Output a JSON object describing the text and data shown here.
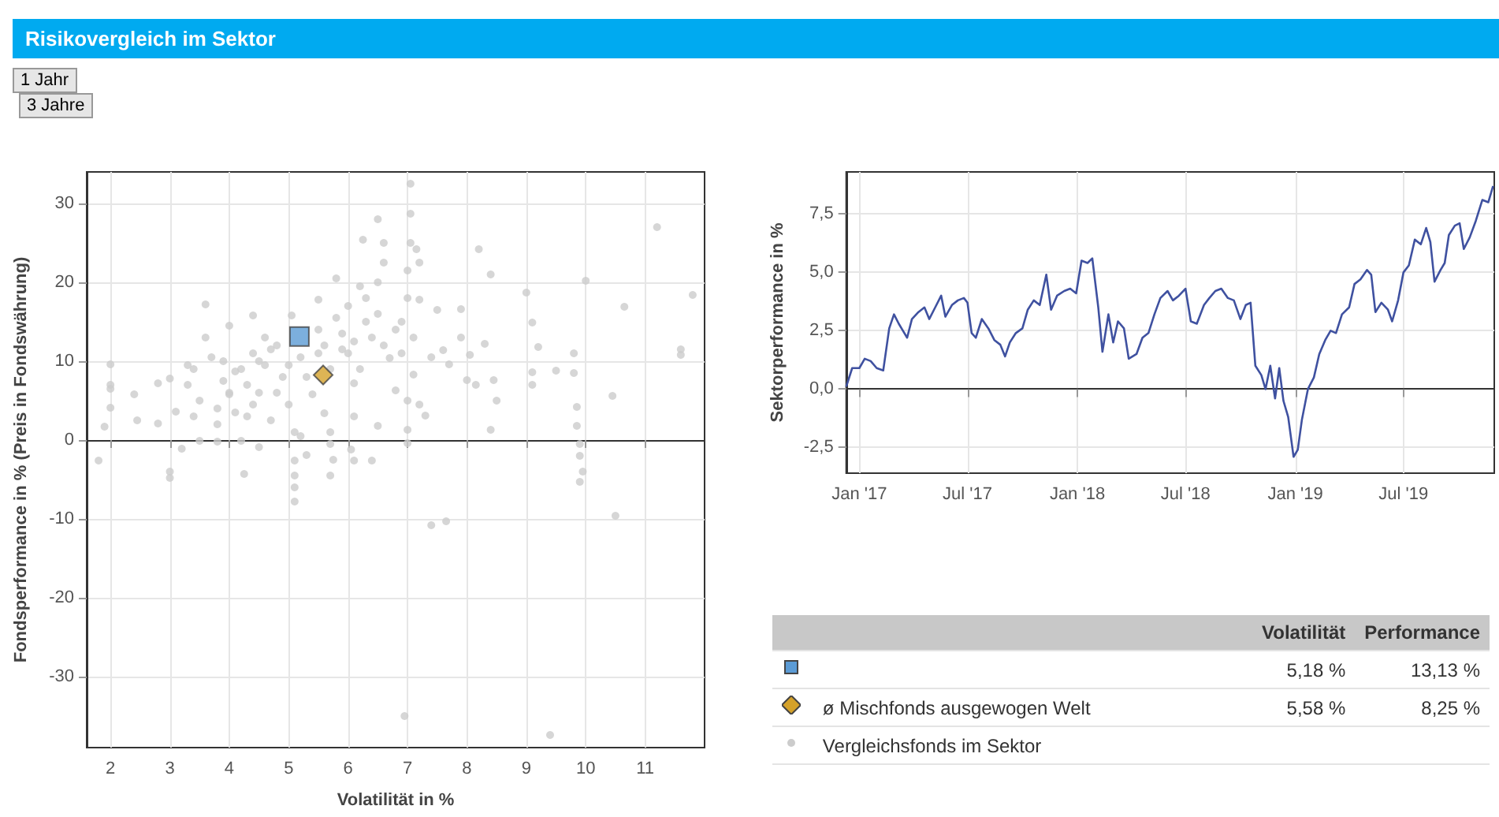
{
  "chart_data": [
    {
      "type": "scatter",
      "title": "Risikovergleich im Sektor",
      "xlabel": "Volatilität in %",
      "ylabel": "Fondsperformance in % (Preis in Fondswährung)",
      "xlim": [
        1.6,
        12
      ],
      "xticks": [
        2,
        3,
        4,
        5,
        6,
        7,
        8,
        9,
        10,
        11
      ],
      "ylim": [
        -39,
        34
      ],
      "yticks": [
        -30,
        -20,
        -10,
        0,
        10,
        20,
        30
      ],
      "grid": true,
      "legend": "right",
      "annotations": [
        "1 Jahr",
        "3 Jahre",
        "Volatilität",
        "Performance",
        "5,18 %",
        "13,13 %",
        "5,58 %",
        "8,25 %"
      ],
      "series": [
        {
          "color": "#5b9bd5",
          "marker": "square",
          "x": [
            5.18
          ],
          "values": [
            13.13
          ]
        },
        {
          "name": "ø Mischfonds ausgewogen Welt",
          "color": "#d4a12a",
          "marker": "diamond",
          "x": [
            5.58
          ],
          "values": [
            8.25
          ]
        },
        {
          "name": "Vergleichsfonds im Sektor",
          "color": "#cccccc",
          "marker": "circle",
          "x": [
            1.8,
            1.9,
            2.0,
            2.0,
            2.0,
            2.0,
            2.4,
            2.45,
            2.8,
            2.8,
            3.0,
            3.0,
            3.0,
            3.1,
            3.2,
            3.3,
            3.4,
            3.4,
            3.5,
            3.6,
            3.6,
            3.7,
            3.8,
            3.8,
            3.9,
            4.0,
            4.0,
            4.1,
            4.2,
            4.25,
            4.3,
            4.4,
            4.4,
            4.5,
            4.5,
            4.6,
            4.7,
            4.8,
            4.9,
            5.0,
            5.05,
            5.1,
            5.1,
            5.1,
            5.1,
            5.1,
            5.2,
            5.3,
            5.4,
            5.5,
            5.6,
            5.6,
            5.7,
            5.7,
            5.7,
            5.75,
            5.8,
            5.9,
            6.0,
            6.0,
            6.05,
            6.1,
            6.1,
            6.1,
            6.2,
            6.25,
            6.3,
            6.4,
            6.5,
            6.5,
            6.5,
            6.6,
            6.6,
            6.7,
            6.8,
            6.9,
            6.95,
            7.0,
            7.0,
            7.0,
            7.0,
            7.0,
            7.05,
            7.05,
            7.05,
            7.1,
            7.15,
            7.2,
            7.2,
            7.2,
            7.3,
            7.4,
            7.4,
            7.5,
            7.6,
            7.65,
            7.7,
            7.9,
            7.9,
            8.0,
            8.05,
            8.15,
            8.2,
            8.3,
            8.4,
            8.4,
            8.45,
            8.5,
            9.0,
            9.1,
            9.1,
            9.1,
            9.2,
            9.4,
            9.5,
            9.8,
            9.8,
            9.85,
            9.85,
            9.9,
            9.9,
            9.9,
            9.95,
            10.0,
            10.45,
            10.5,
            10.65,
            11.2,
            11.6,
            11.6,
            11.8,
            4.0,
            4.2,
            4.3,
            4.5,
            4.7,
            4.8,
            5.0,
            5.2,
            5.3,
            5.5,
            5.7,
            5.9,
            6.1,
            6.2,
            6.4,
            6.5,
            6.6,
            6.8,
            6.9,
            7.1,
            6.3,
            5.8,
            5.5,
            4.6,
            3.5,
            3.3,
            3.8,
            4.1,
            4.4,
            3.9
          ],
          "values": [
            -2.6,
            1.7,
            9.6,
            7,
            6.5,
            4.1,
            5.8,
            2.5,
            7.2,
            2.1,
            7.8,
            -4,
            -4.8,
            3.6,
            -1.1,
            9.5,
            9,
            3.0,
            -0.1,
            17.2,
            13,
            10.5,
            -0.2,
            2,
            7.5,
            14.5,
            5.8,
            8.7,
            -0.1,
            -4.3,
            3,
            15.8,
            11,
            6,
            -0.9,
            9.5,
            2.5,
            12,
            8,
            4.5,
            15.8,
            -2.6,
            -4.5,
            -6,
            -7.8,
            1,
            0.5,
            -1.9,
            5.8,
            17.8,
            12,
            3.4,
            -0.5,
            -4.5,
            1,
            -2.5,
            20.5,
            13.5,
            11,
            17,
            -1.2,
            7.2,
            -2.6,
            3,
            19.5,
            25.4,
            15,
            -2.6,
            28,
            20,
            1.8,
            22.5,
            25,
            10.4,
            6.3,
            15,
            -35,
            21.5,
            18,
            5,
            1.3,
            -0.4,
            32.5,
            28.7,
            25,
            8.3,
            24.2,
            22.5,
            17.8,
            4.5,
            3.1,
            10.5,
            -10.8,
            16.5,
            11.4,
            -10.3,
            9.6,
            16.6,
            13,
            7.6,
            10.8,
            7,
            24.2,
            12.2,
            21,
            1.3,
            7.6,
            5,
            18.7,
            8.6,
            14.9,
            7,
            11.8,
            -37.4,
            8.8,
            11,
            8.5,
            4.2,
            1.8,
            -0.5,
            -2,
            -5.3,
            -4,
            20.2,
            5.6,
            -9.6,
            16.9,
            27,
            11.5,
            10.8,
            18.4,
            6,
            9,
            7,
            10,
            11.5,
            6,
            9.5,
            10.5,
            8,
            11,
            9,
            11.5,
            12.5,
            9,
            13,
            16,
            12,
            14,
            11,
            13,
            18,
            15.5,
            14,
            13,
            5,
            7,
            4,
            3.5,
            4.5,
            10
          ]
        }
      ]
    },
    {
      "type": "line",
      "ylabel": "Sektorperformance in %",
      "grid": true,
      "marker": "none",
      "line_style": "solid",
      "xlim": [
        "2016-12-10",
        "2019-11-30"
      ],
      "xticks": [
        {
          "value": "2017-01-01",
          "label": "Jan '17"
        },
        {
          "value": "2017-07-01",
          "label": "Jul '17"
        },
        {
          "value": "2018-01-01",
          "label": "Jan '18"
        },
        {
          "value": "2018-07-01",
          "label": "Jul '18"
        },
        {
          "value": "2019-01-01",
          "label": "Jan '19"
        },
        {
          "value": "2019-07-01",
          "label": "Jul '19"
        }
      ],
      "ylim": [
        -3.6,
        9.3
      ],
      "yticks": [
        {
          "value": -2.5,
          "label": "-2,5"
        },
        {
          "value": 0,
          "label": "0,0"
        },
        {
          "value": 2.5,
          "label": "2,5"
        },
        {
          "value": 5,
          "label": "5,0"
        },
        {
          "value": 7.5,
          "label": "7,5"
        }
      ],
      "series": [
        {
          "color": "#3f51a0",
          "x": [
            "2016-12-10",
            "2016-12-20",
            "2017-01-01",
            "2017-01-10",
            "2017-01-20",
            "2017-01-30",
            "2017-02-10",
            "2017-02-20",
            "2017-02-28",
            "2017-03-08",
            "2017-03-15",
            "2017-03-22",
            "2017-03-30",
            "2017-04-10",
            "2017-04-20",
            "2017-04-28",
            "2017-05-08",
            "2017-05-18",
            "2017-05-25",
            "2017-06-05",
            "2017-06-15",
            "2017-06-25",
            "2017-07-01",
            "2017-07-08",
            "2017-07-15",
            "2017-07-25",
            "2017-08-05",
            "2017-08-15",
            "2017-08-25",
            "2017-09-02",
            "2017-09-10",
            "2017-09-20",
            "2017-10-01",
            "2017-10-10",
            "2017-10-20",
            "2017-10-30",
            "2017-11-10",
            "2017-11-18",
            "2017-11-28",
            "2017-12-10",
            "2017-12-20",
            "2017-12-30",
            "2018-01-08",
            "2018-01-18",
            "2018-01-26",
            "2018-02-05",
            "2018-02-12",
            "2018-02-22",
            "2018-03-02",
            "2018-03-10",
            "2018-03-20",
            "2018-03-28",
            "2018-04-10",
            "2018-04-20",
            "2018-04-30",
            "2018-05-10",
            "2018-05-20",
            "2018-06-01",
            "2018-06-10",
            "2018-06-20",
            "2018-07-01",
            "2018-07-10",
            "2018-07-20",
            "2018-08-01",
            "2018-08-10",
            "2018-08-20",
            "2018-08-30",
            "2018-09-10",
            "2018-09-20",
            "2018-10-01",
            "2018-10-10",
            "2018-10-18",
            "2018-10-26",
            "2018-11-05",
            "2018-11-12",
            "2018-11-20",
            "2018-11-28",
            "2018-12-05",
            "2018-12-12",
            "2018-12-20",
            "2018-12-29",
            "2019-01-05",
            "2019-01-12",
            "2019-01-22",
            "2019-02-01",
            "2019-02-10",
            "2019-02-20",
            "2019-03-01",
            "2019-03-10",
            "2019-03-20",
            "2019-04-01",
            "2019-04-10",
            "2019-04-20",
            "2019-05-01",
            "2019-05-08",
            "2019-05-15",
            "2019-05-25",
            "2019-06-05",
            "2019-06-12",
            "2019-06-22",
            "2019-07-01",
            "2019-07-10",
            "2019-07-20",
            "2019-07-30",
            "2019-08-08",
            "2019-08-15",
            "2019-08-22",
            "2019-09-01",
            "2019-09-08",
            "2019-09-15",
            "2019-09-25",
            "2019-10-03",
            "2019-10-10",
            "2019-10-20",
            "2019-10-30",
            "2019-11-10",
            "2019-11-20",
            "2019-11-28"
          ],
          "values": [
            0.1,
            0.9,
            0.9,
            1.3,
            1.2,
            0.9,
            0.8,
            2.6,
            3.2,
            2.8,
            2.5,
            2.2,
            3.0,
            3.3,
            3.5,
            3.0,
            3.5,
            4.0,
            3.1,
            3.6,
            3.8,
            3.9,
            3.7,
            2.4,
            2.2,
            3.0,
            2.6,
            2.1,
            1.9,
            1.4,
            2.0,
            2.4,
            2.6,
            3.4,
            3.8,
            3.6,
            4.9,
            3.4,
            4.0,
            4.2,
            4.3,
            4.1,
            5.5,
            5.4,
            5.6,
            3.5,
            1.6,
            3.2,
            2.0,
            2.9,
            2.6,
            1.3,
            1.5,
            2.2,
            2.4,
            3.2,
            3.9,
            4.2,
            3.8,
            4.0,
            4.3,
            2.9,
            2.8,
            3.6,
            3.9,
            4.2,
            4.3,
            3.9,
            3.8,
            3.0,
            3.6,
            3.7,
            1.0,
            0.6,
            0.0,
            1.0,
            -0.4,
            0.9,
            -0.5,
            -1.2,
            -2.9,
            -2.6,
            -1.3,
            0.0,
            0.5,
            1.5,
            2.1,
            2.5,
            2.4,
            3.2,
            3.5,
            4.5,
            4.7,
            5.1,
            4.9,
            3.3,
            3.7,
            3.4,
            2.9,
            3.8,
            5.0,
            5.3,
            6.4,
            6.2,
            6.9,
            6.3,
            4.6,
            5.1,
            5.4,
            6.6,
            7.0,
            7.1,
            6.0,
            6.5,
            7.2,
            8.1,
            8.0,
            8.7
          ]
        }
      ]
    }
  ]
}
